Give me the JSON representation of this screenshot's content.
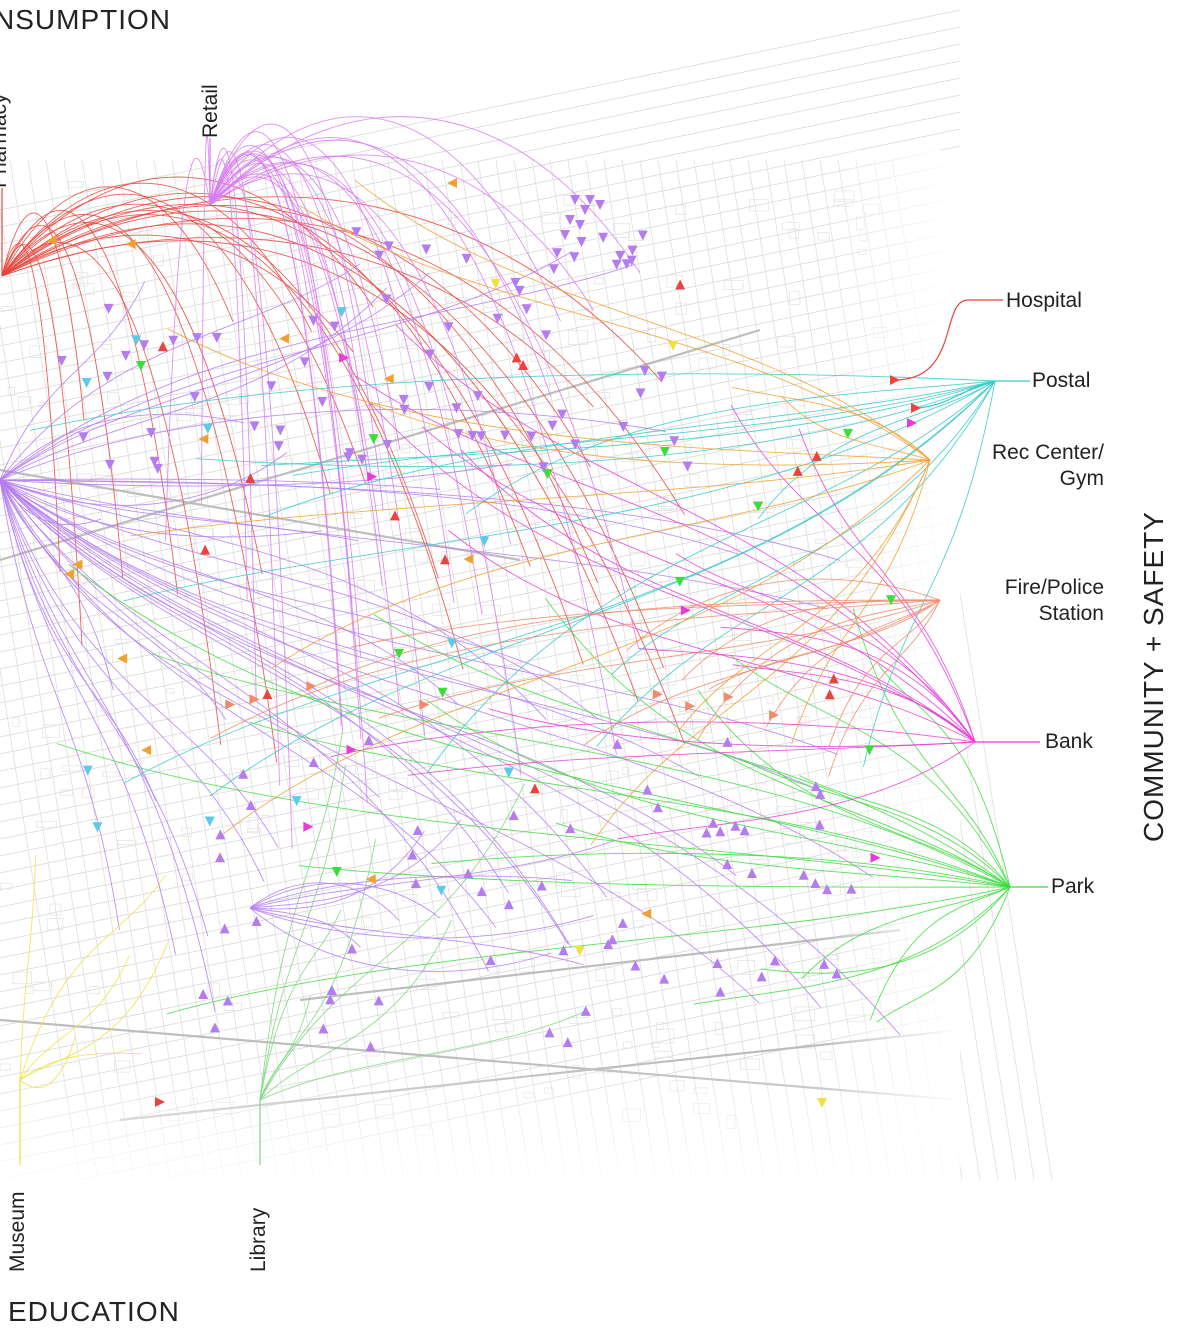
{
  "categories": {
    "consumption": "NSUMPTION",
    "education": "EDUCATION",
    "community_safety": "COMMUNITY + SAFETY"
  },
  "legend": {
    "pharmacy": "Pharmacy",
    "retail": "Retail",
    "hospital": "Hospital",
    "postal": "Postal",
    "rec_line1": "Rec Center/",
    "rec_line2": "Gym",
    "fire_line1": "Fire/Police",
    "fire_line2": "Station",
    "bank": "Bank",
    "park": "Park",
    "museum": "Museum",
    "library": "Library"
  },
  "colors": {
    "pharmacy": "#e8453c",
    "retail": "#d77cf0",
    "hospital": "#e8453c",
    "postal": "#39c9c9",
    "rec_center": "#f0a030",
    "fire_police": "#f08a6a",
    "bank": "#e83cd8",
    "park": "#3cdc3c",
    "museum": "#f0e040",
    "library": "#7ed67e",
    "purple": "#b57cf0",
    "cyan": "#5ccbea"
  }
}
